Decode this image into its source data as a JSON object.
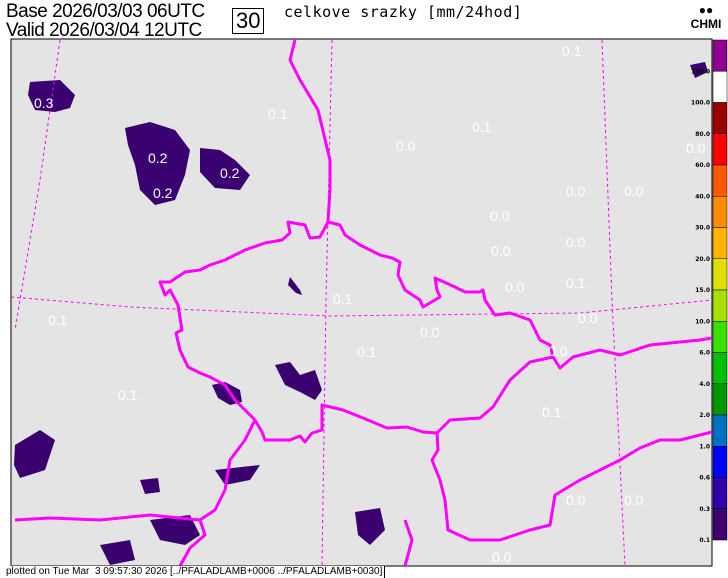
{
  "header": {
    "base_label": "Base 2026/03/03 06UTC",
    "valid_label": "Valid 2026/03/04 12UTC",
    "forecast_hour": "30",
    "title": "celkove srazky [mm/24hod]",
    "logo_text": "CHMI"
  },
  "footer": {
    "text": "plotted on Tue Mar  3 09:57:30 2026 [../PFALADLAMB+0006 ../PFALADLAMB+0030]"
  },
  "map": {
    "background": "#e4e4e4",
    "border_color": "#ff00ff",
    "precip_color": "#3a0070",
    "value_labels": [
      "0.1",
      "0.3",
      "0.1",
      "0.1",
      "0.0",
      "0.2",
      "0.2",
      "0.0",
      "0.2",
      "0.0",
      "0.0",
      "0.0",
      "0.0",
      "0.0",
      "0.1",
      "0.0",
      "0.1",
      "0.0",
      "0.1",
      "0.0",
      "0.1",
      "0.0",
      "0.1",
      "0.1",
      "0.0",
      "0.0",
      "0.0"
    ]
  },
  "legend": {
    "colors": [
      "#8e0090",
      "#ffffff",
      "#9c0000",
      "#ff0000",
      "#ff5a00",
      "#ff8c00",
      "#ffb400",
      "#e0e000",
      "#a8e000",
      "#38e000",
      "#00c000",
      "#009800",
      "#0070c0",
      "#0000ff",
      "#3000a8",
      "#400070"
    ],
    "labels": [
      "150.0",
      "100.0",
      "80.0",
      "60.0",
      "40.0",
      "30.0",
      "20.0",
      "15.0",
      "10.0",
      "6.0",
      "4.0",
      "2.0",
      "1.0",
      "0.6",
      "0.3",
      "0.1"
    ]
  }
}
